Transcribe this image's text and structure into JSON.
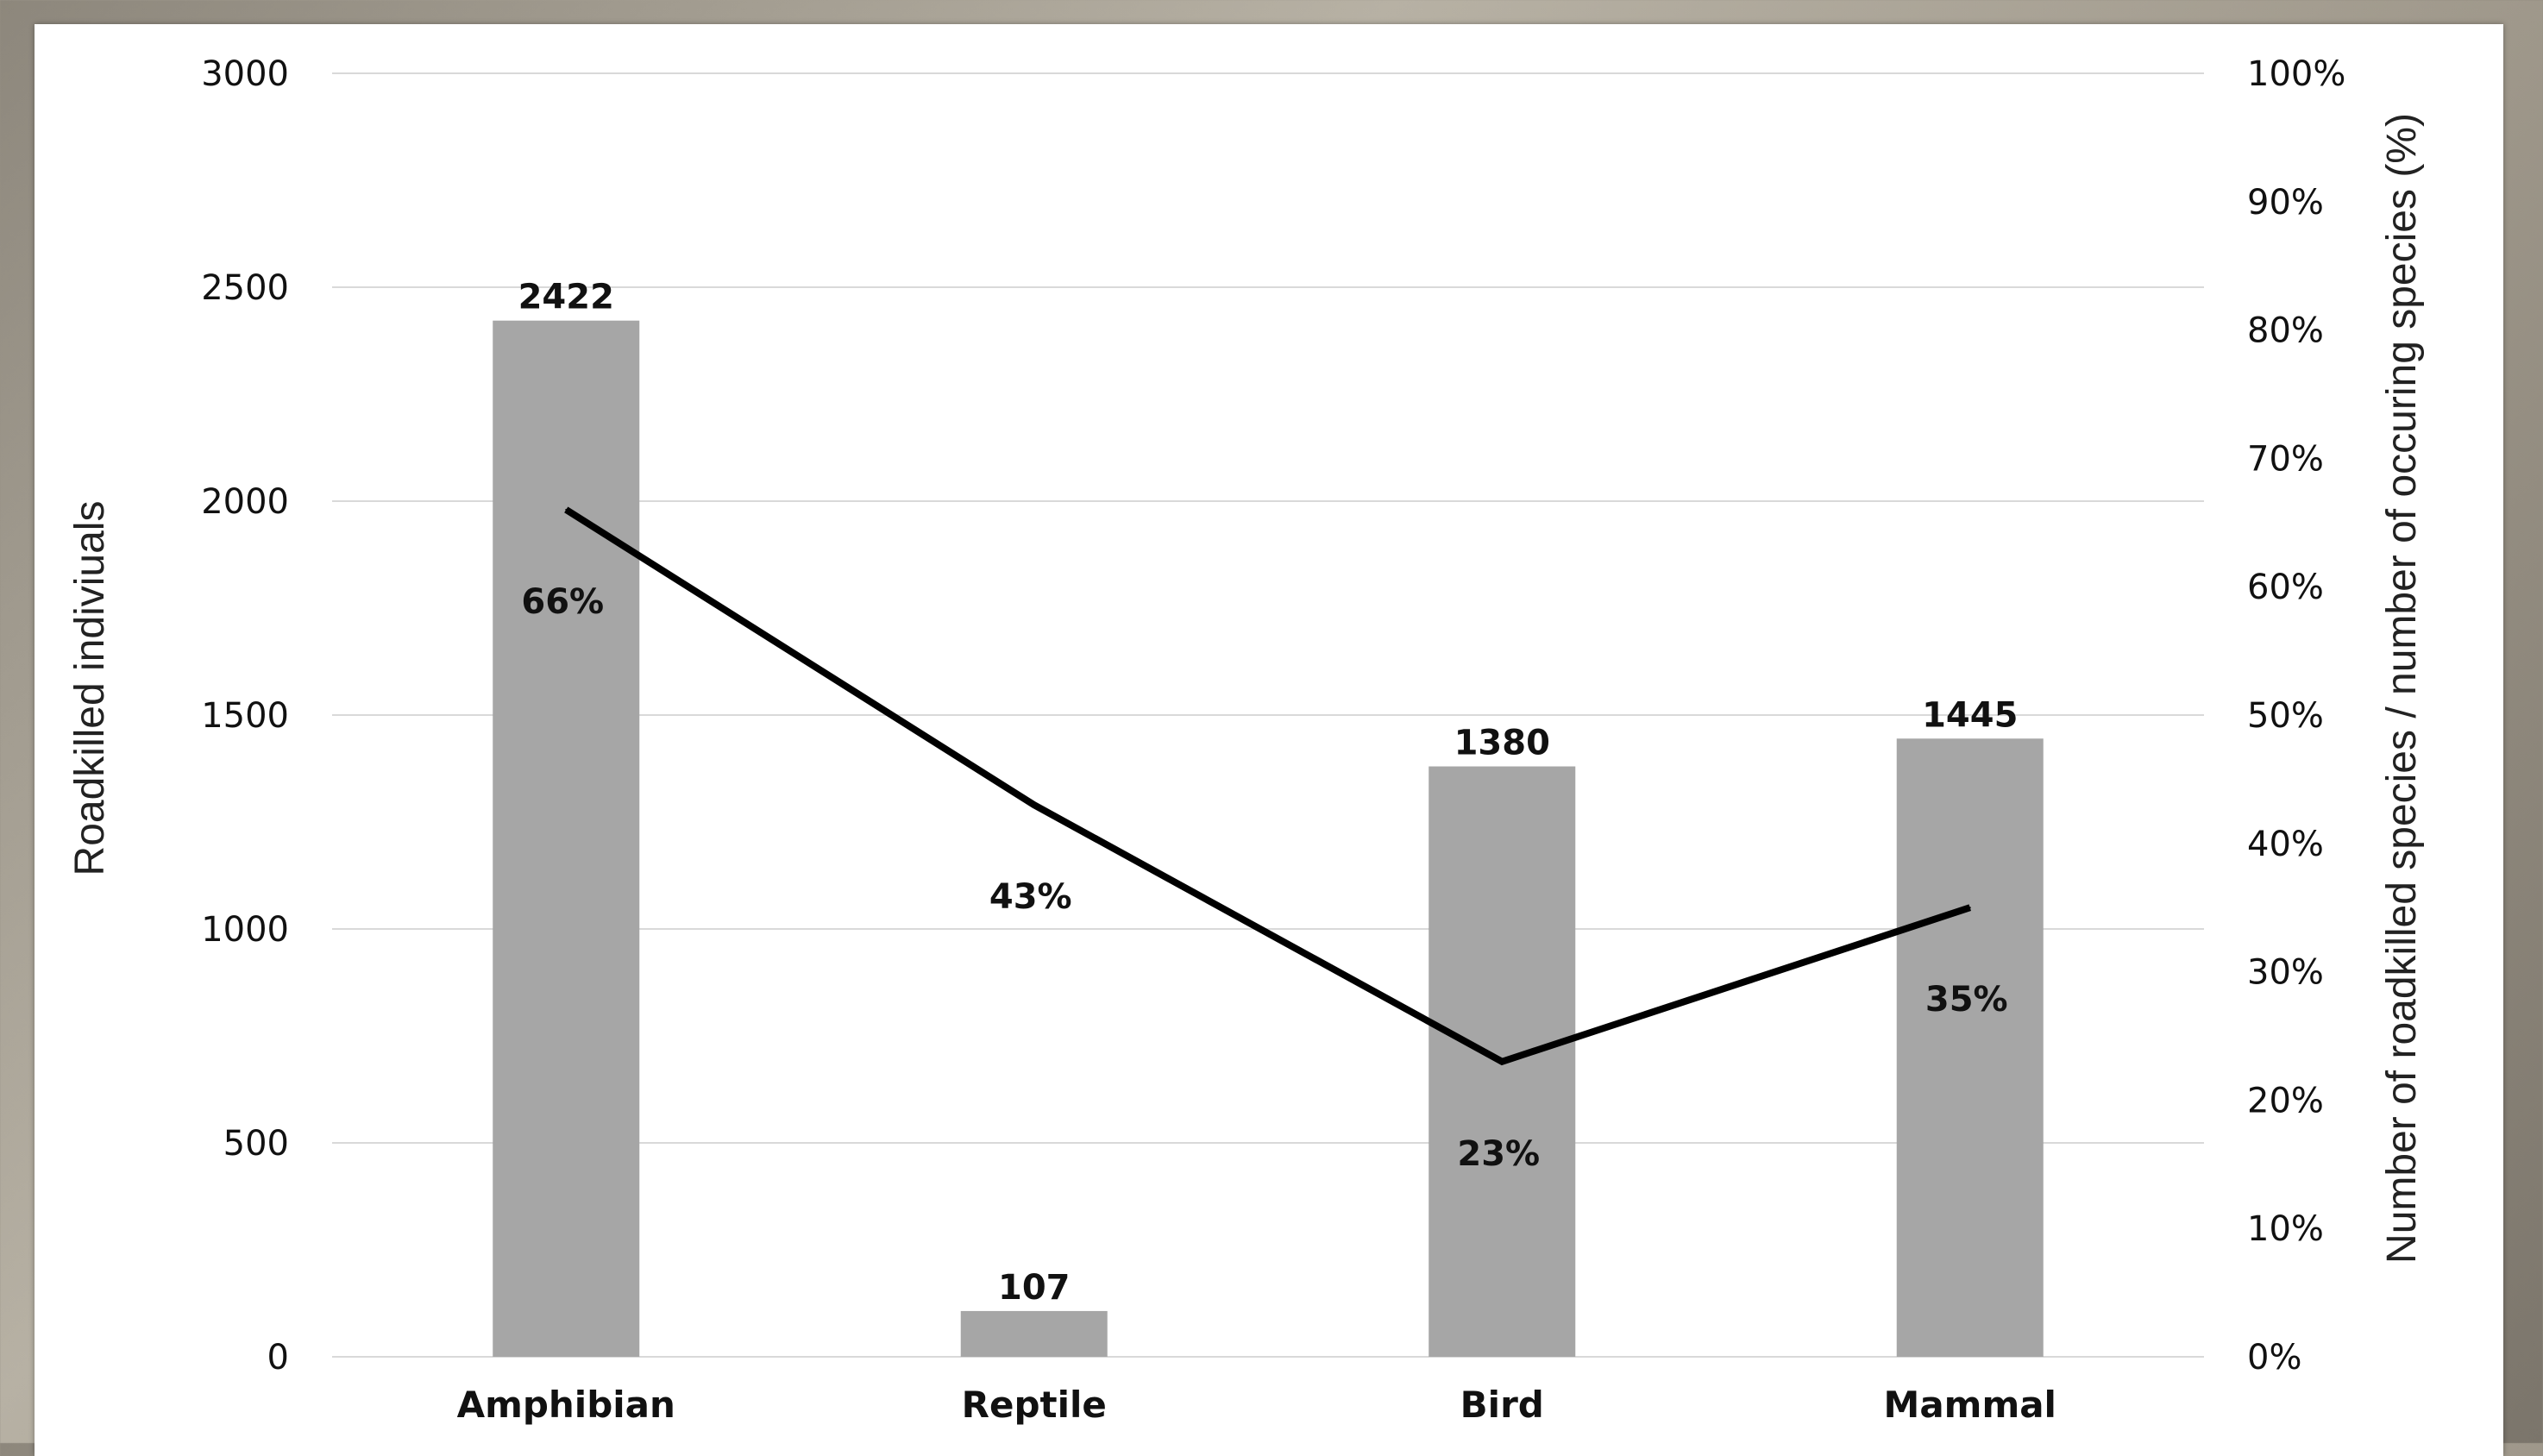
{
  "chart_data": {
    "type": "bar",
    "categories": [
      "Amphibian",
      "Reptile",
      "Bird",
      "Mammal"
    ],
    "series": [
      {
        "type": "bar",
        "axis": "left",
        "values": [
          2422,
          107,
          1380,
          1445
        ],
        "color": "#a6a6a6"
      },
      {
        "type": "line",
        "axis": "right",
        "values": [
          66,
          43,
          23,
          35
        ],
        "value_labels": [
          "66%",
          "43%",
          "23%",
          "35%"
        ],
        "color": "#000000"
      }
    ],
    "ylabel": "Roadkilled indiviuals",
    "ylabel_right": "Number of roadkilled species / number of occuring species (%)",
    "ylim": [
      0,
      3000
    ],
    "yticks": [
      "0",
      "500",
      "1000",
      "1500",
      "2000",
      "2500",
      "3000"
    ],
    "ylim_right": [
      0,
      100
    ],
    "yticks_right": [
      "0%",
      "10%",
      "20%",
      "30%",
      "40%",
      "50%",
      "60%",
      "70%",
      "80%",
      "90%",
      "100%"
    ],
    "grid": true,
    "legend": "none"
  }
}
